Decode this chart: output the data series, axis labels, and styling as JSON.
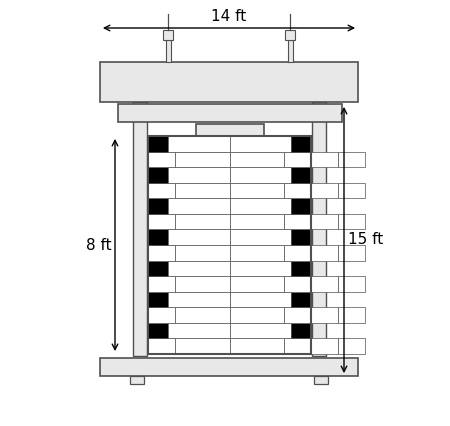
{
  "bg_color": "#ffffff",
  "line_color": "#505050",
  "black_color": "#000000",
  "white_brick": "#ffffff",
  "gray_plate": "#e8e8e8",
  "title_14ft": "14 ft",
  "title_15ft": "15 ft",
  "title_8ft": "8 ft",
  "fig_width": 4.5,
  "fig_height": 4.26,
  "num_rows": 14
}
